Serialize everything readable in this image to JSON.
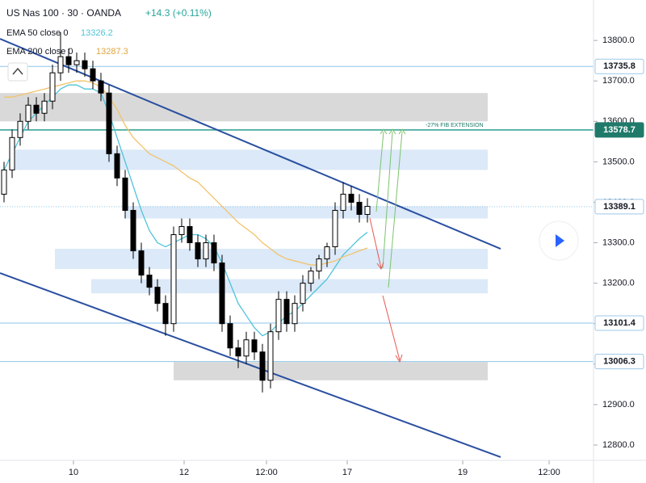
{
  "chart_data": {
    "type": "candlestick",
    "title": "US Nas 100 · 30 · OANDA",
    "change": "+14.3 (+0.11%)",
    "indicators": [
      {
        "name": "EMA 50 close 0",
        "value": "13326.2"
      },
      {
        "name": "EMA 200 close 0",
        "value": "13287.3"
      }
    ],
    "x": [
      0,
      1,
      2,
      3,
      4,
      5,
      6,
      7,
      8,
      9,
      10,
      11,
      12,
      13,
      14,
      15,
      16,
      17,
      18,
      19,
      20,
      21,
      22,
      23,
      24,
      25,
      26,
      27,
      28,
      29,
      30,
      31,
      32,
      33,
      34,
      35,
      36,
      37,
      38,
      39,
      40,
      41,
      42,
      43,
      44,
      45
    ],
    "open": [
      13420,
      13480,
      13560,
      13600,
      13640,
      13620,
      13650,
      13720,
      13760,
      13740,
      13750,
      13730,
      13700,
      13670,
      13520,
      13460,
      13380,
      13280,
      13220,
      13190,
      13150,
      13100,
      13320,
      13340,
      13300,
      13260,
      13300,
      13250,
      13100,
      13040,
      13020,
      13060,
      13030,
      12960,
      13080,
      13160,
      13100,
      13150,
      13200,
      13230,
      13260,
      13290,
      13380,
      13420,
      13400,
      13370
    ],
    "high": [
      13500,
      13580,
      13620,
      13660,
      13660,
      13670,
      13740,
      13820,
      13780,
      13770,
      13770,
      13750,
      13720,
      13690,
      13540,
      13480,
      13400,
      13300,
      13240,
      13210,
      13170,
      13340,
      13360,
      13360,
      13320,
      13320,
      13320,
      13270,
      13120,
      13060,
      13080,
      13080,
      13050,
      13100,
      13180,
      13180,
      13170,
      13220,
      13240,
      13270,
      13300,
      13400,
      13450,
      13440,
      13420,
      13410
    ],
    "low": [
      13400,
      13460,
      13540,
      13580,
      13600,
      13600,
      13630,
      13700,
      13720,
      13720,
      13710,
      13680,
      13650,
      13500,
      13440,
      13360,
      13260,
      13200,
      13170,
      13130,
      13070,
      13080,
      13300,
      13280,
      13240,
      13240,
      13230,
      13080,
      13020,
      12990,
      13000,
      13010,
      12930,
      12940,
      13060,
      13080,
      13080,
      13130,
      13180,
      13210,
      13240,
      13270,
      13360,
      13380,
      13350,
      13350
    ],
    "close": [
      13480,
      13560,
      13600,
      13640,
      13620,
      13650,
      13720,
      13760,
      13740,
      13750,
      13730,
      13700,
      13670,
      13520,
      13460,
      13380,
      13280,
      13220,
      13190,
      13150,
      13100,
      13320,
      13340,
      13300,
      13260,
      13300,
      13250,
      13100,
      13040,
      13020,
      13060,
      13030,
      12960,
      13080,
      13160,
      13100,
      13150,
      13200,
      13230,
      13260,
      13290,
      13380,
      13420,
      13400,
      13370,
      13390
    ],
    "series": [
      {
        "name": "EMA 50",
        "color": "#4fc3d9",
        "values": [
          13480,
          13520,
          13560,
          13600,
          13620,
          13640,
          13660,
          13680,
          13690,
          13690,
          13680,
          13680,
          13670,
          13620,
          13560,
          13500,
          13440,
          13380,
          13330,
          13300,
          13290,
          13300,
          13310,
          13320,
          13320,
          13310,
          13290,
          13250,
          13200,
          13150,
          13120,
          13090,
          13070,
          13080,
          13100,
          13120,
          13130,
          13150,
          13170,
          13190,
          13210,
          13240,
          13270,
          13290,
          13310,
          13326
        ]
      },
      {
        "name": "EMA 200",
        "color": "#f2c36b",
        "values": [
          13660,
          13660,
          13665,
          13670,
          13675,
          13680,
          13685,
          13690,
          13695,
          13700,
          13700,
          13695,
          13685,
          13660,
          13630,
          13590,
          13560,
          13540,
          13520,
          13510,
          13500,
          13490,
          13475,
          13460,
          13450,
          13430,
          13410,
          13390,
          13370,
          13350,
          13335,
          13320,
          13300,
          13285,
          13270,
          13260,
          13255,
          13250,
          13245,
          13245,
          13250,
          13255,
          13265,
          13272,
          13280,
          13287
        ]
      }
    ],
    "up_color": "#ffffff",
    "down_color": "#000000",
    "ylim": [
      12762,
      13900
    ],
    "yticks": [
      {
        "value": 12800,
        "label": "12800.0"
      },
      {
        "value": 12900,
        "label": "12900.0"
      },
      {
        "value": 13000,
        "label": "13000.0"
      },
      {
        "value": 13100,
        "label": "13100.0"
      },
      {
        "value": 13200,
        "label": "13200.0"
      },
      {
        "value": 13300,
        "label": "13300.0"
      },
      {
        "value": 13400,
        "label": "13400.0"
      },
      {
        "value": 13500,
        "label": "13500.0"
      },
      {
        "value": 13600,
        "label": "13600.0"
      },
      {
        "value": 13700,
        "label": "13700.0"
      },
      {
        "value": 13800,
        "label": "13800.0"
      }
    ],
    "xlim": [
      -0.5,
      73
    ],
    "xticks": [
      {
        "value": 8.6,
        "label": "10"
      },
      {
        "value": 22.3,
        "label": "12"
      },
      {
        "value": 32.5,
        "label": "12:00"
      },
      {
        "value": 42.5,
        "label": "17"
      },
      {
        "value": 56.8,
        "label": "19"
      },
      {
        "value": 67.5,
        "label": "12:00"
      }
    ],
    "levels": [
      13735.8,
      13578.7,
      13389.1,
      13101.4,
      13006.3
    ],
    "fib_label": "-27% FIB EXTENSION",
    "zones": [
      {
        "from": 13600,
        "to": 13670,
        "x0": -0.5,
        "x1": 59.9,
        "color": "#d9d9d9"
      },
      {
        "from": 13480,
        "to": 13530,
        "x0": 1,
        "x1": 59.9,
        "color": "#dbe9f8"
      },
      {
        "from": 13360,
        "to": 13390,
        "x0": 15,
        "x1": 59.9,
        "color": "#dbe9f8"
      },
      {
        "from": 13235,
        "to": 13285,
        "x0": 6.3,
        "x1": 59.9,
        "color": "#dbe9f8"
      },
      {
        "from": 13175,
        "to": 13210,
        "x0": 10.8,
        "x1": 59.9,
        "color": "#dbe9f8"
      },
      {
        "from": 12960,
        "to": 13005,
        "x0": 21,
        "x1": 59.9,
        "color": "#d9d9d9"
      }
    ],
    "trendlines": [
      {
        "x": [
          -0.5,
          61.5
        ],
        "y": [
          13804,
          13285
        ],
        "color": "#2a4fa0"
      },
      {
        "x": [
          -0.5,
          61.5
        ],
        "y": [
          13225,
          12770
        ],
        "color": "#2a4fa0"
      }
    ]
  }
}
